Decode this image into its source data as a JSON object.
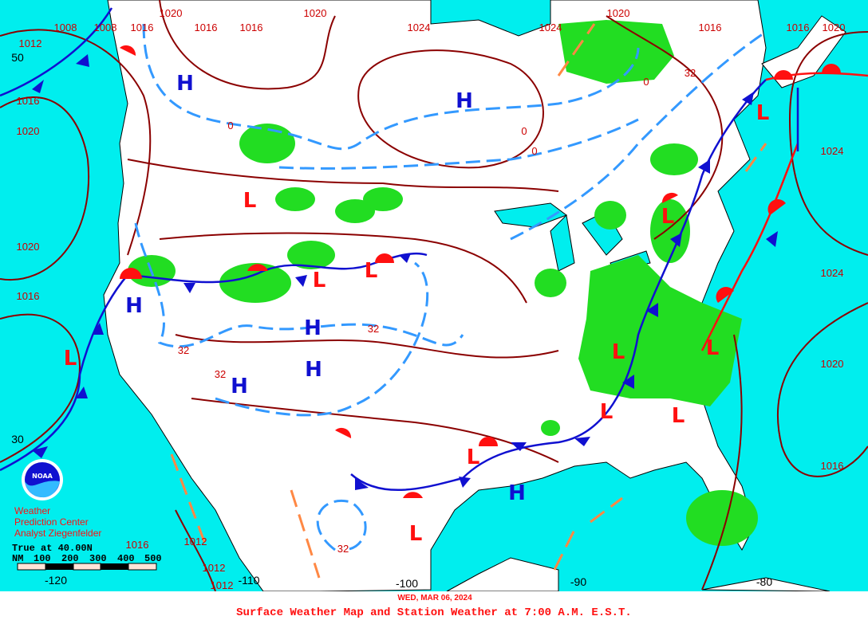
{
  "caption": "Surface Weather Map and Station Weather at 7:00 A.M. E.S.T.",
  "date": "WED, MAR 06, 2024",
  "credit": {
    "logo_text": "NOAA",
    "line1": "Weather",
    "line2": "Prediction Center",
    "line3": "Analyst Ziegenfelder"
  },
  "scale_bar": {
    "true_at": "True at 40.00N",
    "units": "NM",
    "ticks": [
      "100",
      "200",
      "300",
      "400",
      "500"
    ]
  },
  "latitude_labels": [
    "50",
    "30"
  ],
  "longitude_labels": [
    "-120",
    "-110",
    "-100",
    "-90",
    "-80"
  ],
  "isobar_labels": [
    "1012",
    "1008",
    "1008",
    "1016",
    "1020",
    "1016",
    "1016",
    "1020",
    "1024",
    "1024",
    "1020",
    "1016",
    "1016",
    "1020",
    "1016",
    "1020",
    "1020",
    "1016",
    "1024",
    "1024",
    "1020",
    "1016",
    "1012",
    "1012",
    "1012",
    "1016"
  ],
  "isotherm_labels": [
    "32",
    "32",
    "32",
    "32",
    "32",
    "0",
    "0",
    "0",
    "0"
  ],
  "high_centers": [
    "H",
    "H",
    "H",
    "H",
    "H",
    "H",
    "H"
  ],
  "low_centers": [
    "L",
    "L",
    "L",
    "L",
    "L",
    "L",
    "L",
    "L",
    "L",
    "L",
    "L",
    "L"
  ],
  "colors": {
    "ocean": "#00eeee",
    "land": "#ffffff",
    "isobar": "#8b0000",
    "isotherm": "#3399ff",
    "cold_front": "#1010d0",
    "warm_front": "#ff1010",
    "precipitation": "#22dd22",
    "trough": "#ff8844",
    "text": "#ff1010"
  }
}
